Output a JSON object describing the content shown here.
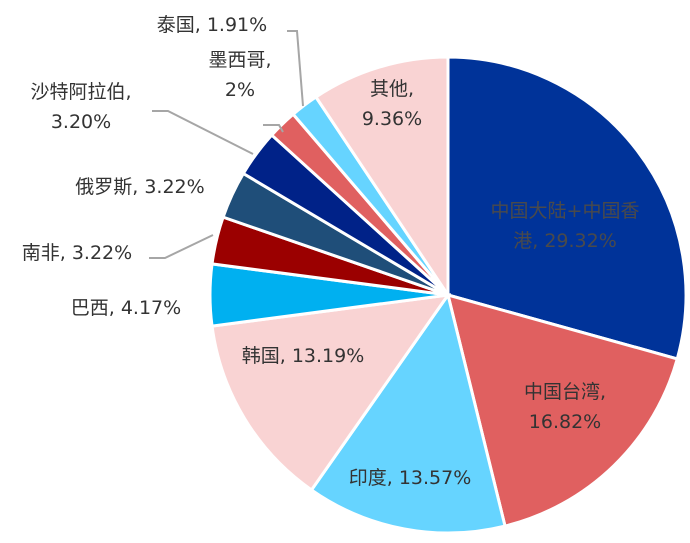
{
  "chart_data": {
    "type": "pie",
    "title": "",
    "slices": [
      {
        "label": "中国大陆+中国香港",
        "value": 29.32,
        "value_label": "29.32%",
        "color": "#003399",
        "text_lines": [
          "中国大陆+中国香",
          "港, 29.32%"
        ]
      },
      {
        "label": "中国台湾",
        "value": 16.82,
        "value_label": "16.82%",
        "color": "#E06060",
        "text_lines": [
          "中国台湾,",
          "16.82%"
        ]
      },
      {
        "label": "印度",
        "value": 13.57,
        "value_label": "13.57%",
        "color": "#66D4FF",
        "text_lines": [
          "印度, 13.57%"
        ]
      },
      {
        "label": "韩国",
        "value": 13.19,
        "value_label": "13.19%",
        "color": "#F9D3D3",
        "text_lines": [
          "韩国, 13.19%"
        ]
      },
      {
        "label": "巴西",
        "value": 4.17,
        "value_label": "4.17%",
        "color": "#00B0F0",
        "text_lines": [
          "巴西, 4.17%"
        ]
      },
      {
        "label": "南非",
        "value": 3.22,
        "value_label": "3.22%",
        "color": "#9B0000",
        "text_lines": [
          "南非, 3.22%"
        ]
      },
      {
        "label": "俄罗斯",
        "value": 3.22,
        "value_label": "3.22%",
        "color": "#1F4E79",
        "text_lines": [
          "俄罗斯, 3.22%"
        ]
      },
      {
        "label": "沙特阿拉伯",
        "value": 3.2,
        "value_label": "3.20%",
        "color": "#002288",
        "text_lines": [
          "沙特阿拉伯,",
          "3.20%"
        ]
      },
      {
        "label": "墨西哥",
        "value": 2,
        "value_label": "2%",
        "color": "#E06060",
        "text_lines": [
          "墨西哥,",
          "2%"
        ]
      },
      {
        "label": "泰国",
        "value": 1.91,
        "value_label": "1.91%",
        "color": "#66D4FF",
        "text_lines": [
          "泰国, 1.91%"
        ]
      },
      {
        "label": "其他",
        "value": 9.36,
        "value_label": "9.36%",
        "color": "#F9D3D3",
        "text_lines": [
          "其他,",
          "9.36%"
        ]
      }
    ],
    "legend": "none",
    "start_angle": "12 o'clock, clockwise"
  }
}
